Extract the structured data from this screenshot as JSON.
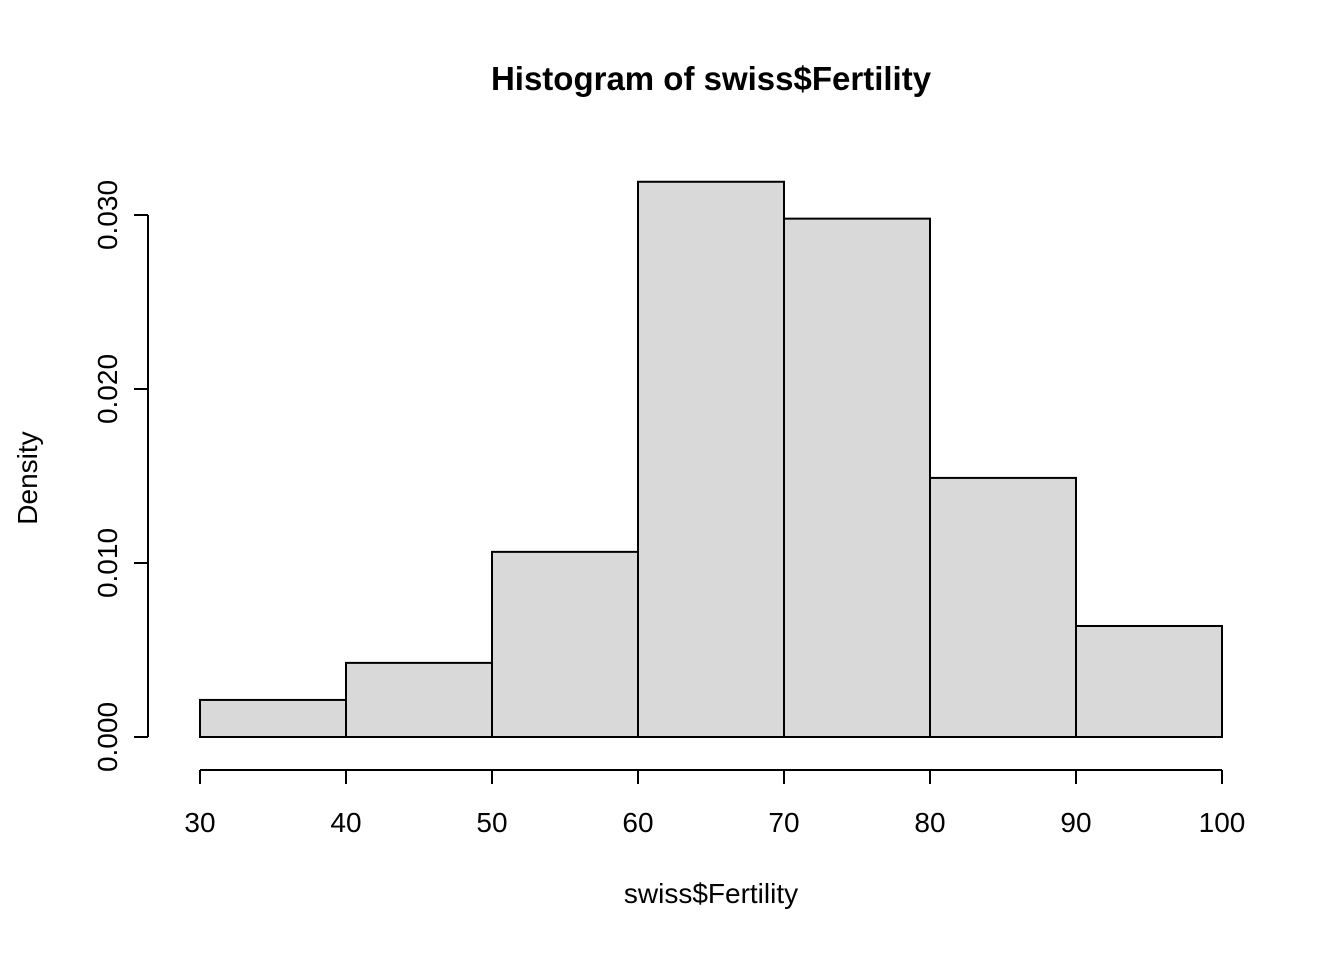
{
  "chart_data": {
    "type": "bar",
    "title": "Histogram of swiss$Fertility",
    "xlabel": "swiss$Fertility",
    "ylabel": "Density",
    "bin_edges": [
      30,
      40,
      50,
      60,
      70,
      80,
      90,
      100
    ],
    "values": [
      0.00213,
      0.00426,
      0.01064,
      0.03191,
      0.02979,
      0.01489,
      0.00638
    ],
    "x_ticks": [
      30,
      40,
      50,
      60,
      70,
      80,
      90,
      100
    ],
    "y_ticks": [
      0,
      0.01,
      0.02,
      0.03
    ],
    "y_tick_labels": [
      "0.000",
      "0.010",
      "0.020",
      "0.030"
    ],
    "xlim": [
      30,
      100
    ],
    "ylim": [
      0,
      0.032
    ],
    "bar_fill": "#d9d9d9",
    "bar_stroke": "#000000",
    "grid": false,
    "legend": false
  }
}
